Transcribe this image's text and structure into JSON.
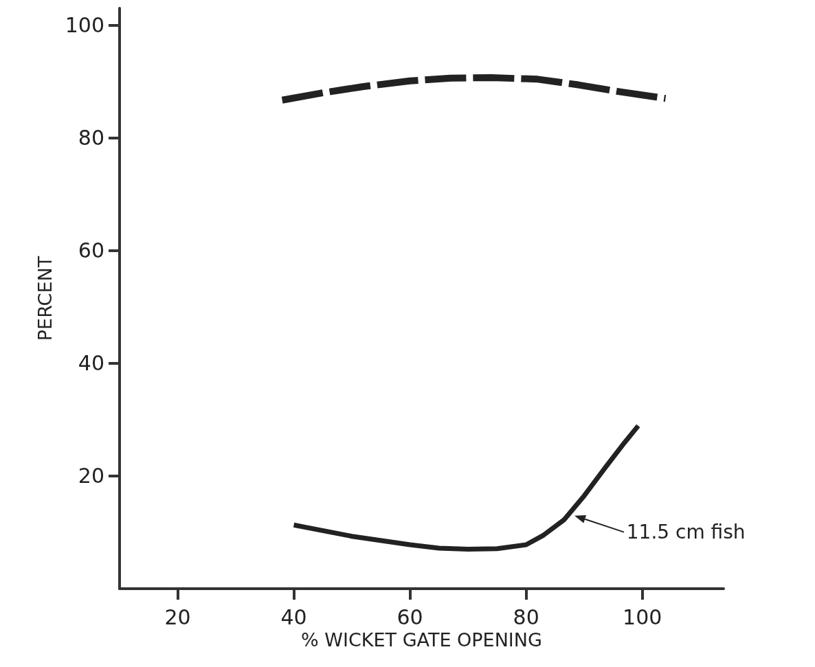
{
  "chart_data": {
    "type": "line",
    "xlabel": "% WICKET GATE OPENING",
    "ylabel": "PERCENT",
    "xlim": [
      10,
      114
    ],
    "xticks": [
      20,
      40,
      60,
      80,
      100
    ],
    "ylim": [
      0,
      103
    ],
    "yticks": [
      20,
      40,
      60,
      80,
      100
    ],
    "grid": false,
    "series": [
      {
        "color": "#222222",
        "line_style": "dashed",
        "x": [
          38,
          45,
          52,
          60,
          67,
          74,
          82,
          89,
          96,
          104
        ],
        "values": [
          86.7,
          88,
          89.1,
          90.1,
          90.6,
          90.7,
          90.4,
          89.4,
          88.2,
          87
        ]
      },
      {
        "color": "#222222",
        "line_style": "solid",
        "x": [
          40,
          50,
          60,
          65,
          70,
          75,
          80,
          83,
          86.5,
          90,
          93.7,
          97,
          99.3
        ],
        "values": [
          11.3,
          9.3,
          7.8,
          7.2,
          7,
          7.1,
          7.8,
          9.5,
          12.2,
          16.5,
          21.6,
          26,
          28.9
        ]
      }
    ],
    "annotations": [
      {
        "text": "11.5 cm fish",
        "x": 88.3,
        "y": 13
      }
    ]
  }
}
